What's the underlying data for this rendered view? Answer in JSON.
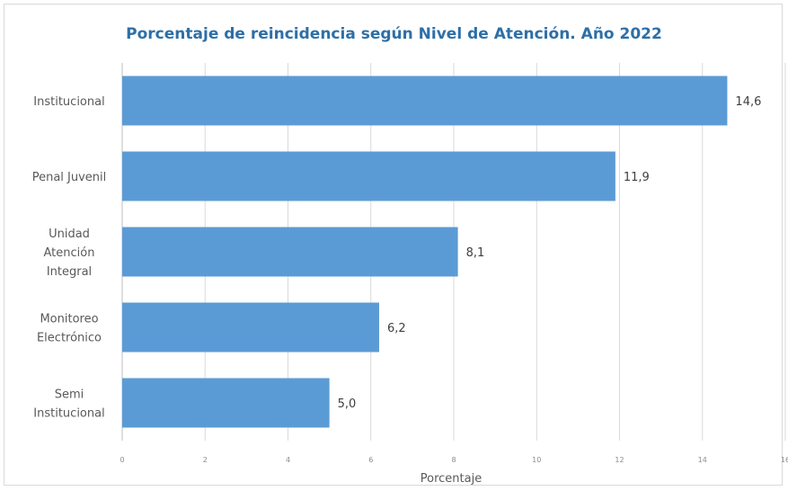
{
  "chart_data": {
    "type": "bar",
    "orientation": "horizontal",
    "title": "Porcentaje de reincidencia según Nivel de Atención. Año 2022",
    "xlabel": "Porcentaje",
    "ylabel": "",
    "categories": [
      [
        "Institucional"
      ],
      [
        "Penal Juvenil"
      ],
      [
        "Unidad",
        "Atención",
        "Integral"
      ],
      [
        "Monitoreo",
        "Electrónico"
      ],
      [
        "Semi",
        "Institucional"
      ]
    ],
    "values": [
      14.6,
      11.9,
      8.1,
      6.2,
      5.0
    ],
    "value_labels": [
      "14,6",
      "11,9",
      "8,1",
      "6,2",
      "5,0"
    ],
    "xlim": [
      0,
      16
    ],
    "xticks": [
      0,
      2,
      4,
      6,
      8,
      10,
      12,
      14,
      16
    ],
    "xtick_labels": [
      "0",
      "2",
      "4",
      "6",
      "8",
      "10",
      "12",
      "14",
      "16"
    ],
    "grid": "vertical",
    "legend": "none",
    "bar_color": "#5b9bd5",
    "title_color": "#2e6fa7",
    "grid_color": "#d9d9d9"
  }
}
